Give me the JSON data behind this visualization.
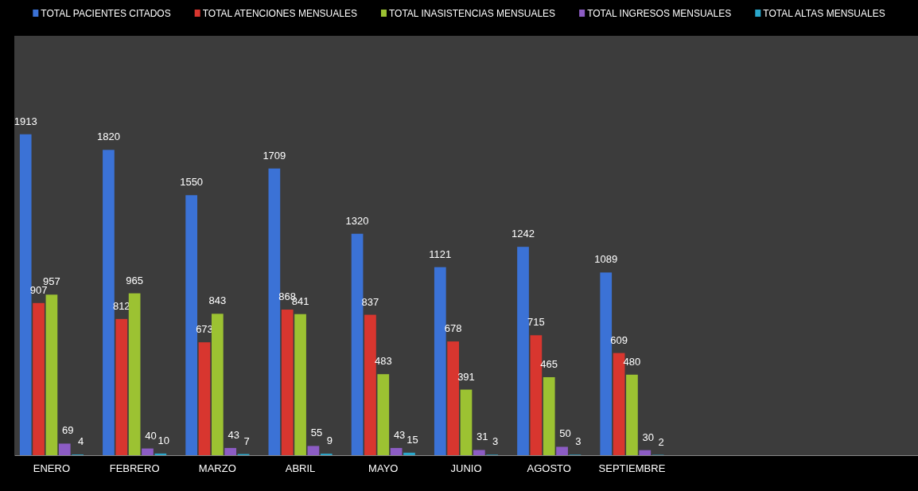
{
  "chart_data": {
    "type": "bar",
    "categories": [
      "ENERO",
      "FEBRERO",
      "MARZO",
      "ABRIL",
      "MAYO",
      "JUNIO",
      "AGOSTO",
      "SEPTIEMBRE",
      null,
      null,
      null
    ],
    "series": [
      {
        "name": "TOTAL PACIENTES CITADOS",
        "color": "#3b72d6",
        "values": [
          1913,
          1820,
          1550,
          1709,
          1320,
          1121,
          1242,
          1089,
          null,
          null,
          null
        ]
      },
      {
        "name": "TOTAL ATENCIONES MENSUALES",
        "color": "#d8362f",
        "values": [
          907,
          812,
          673,
          868,
          837,
          678,
          715,
          609,
          null,
          null,
          null
        ]
      },
      {
        "name": "TOTAL INASISTENCIAS MENSUALES",
        "color": "#9cc232",
        "values": [
          957,
          965,
          843,
          841,
          483,
          391,
          465,
          480,
          null,
          null,
          null
        ]
      },
      {
        "name": "TOTAL INGRESOS MENSUALES",
        "color": "#8c5cc4",
        "values": [
          69,
          40,
          43,
          55,
          43,
          31,
          50,
          30,
          null,
          null,
          null
        ]
      },
      {
        "name": "TOTAL ALTAS MENSUALES",
        "color": "#2aa7cb",
        "values": [
          4,
          10,
          7,
          9,
          15,
          3,
          3,
          2,
          null,
          null,
          null
        ]
      }
    ],
    "ylim": [
      0,
      2500
    ],
    "tick_labels": "x",
    "data_labels": true,
    "legend": "top",
    "grid": false
  }
}
